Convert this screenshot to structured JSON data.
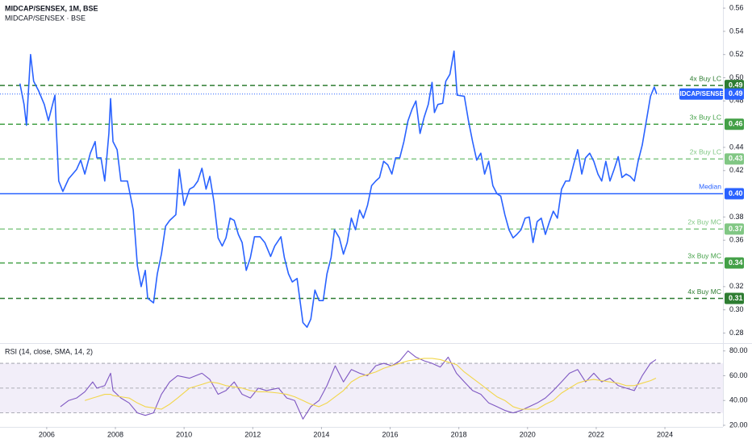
{
  "chart_data": [
    {
      "type": "line",
      "title": "MIDCAP/SENSEX, 1M, BSE",
      "subtitle": "MIDCAP/SENSEX · BSE",
      "xlim": [
        2004.64,
        2025.69
      ],
      "ylim": [
        0.272,
        0.567
      ],
      "yticks": [
        0.56,
        0.54,
        0.52,
        {
          "value": 0.5,
          "label": "0.50"
        },
        0.48,
        0.44,
        0.42,
        0.38,
        0.36,
        0.32,
        {
          "value": 0.3,
          "label": "0.30"
        },
        0.28
      ],
      "x": [
        2005.22,
        2005.34,
        2005.41,
        2005.53,
        2005.62,
        2005.76,
        2005.93,
        2006.05,
        2006.24,
        2006.28,
        2006.35,
        2006.47,
        2006.64,
        2006.87,
        2006.99,
        2007.11,
        2007.27,
        2007.41,
        2007.46,
        2007.58,
        2007.69,
        2007.81,
        2007.86,
        2007.93,
        2008.05,
        2008.16,
        2008.35,
        2008.52,
        2008.64,
        2008.75,
        2008.87,
        2008.94,
        2009.11,
        2009.22,
        2009.34,
        2009.46,
        2009.58,
        2009.76,
        2009.86,
        2010.0,
        2010.16,
        2010.28,
        2010.4,
        2010.52,
        2010.64,
        2010.75,
        2010.87,
        2010.99,
        2011.11,
        2011.22,
        2011.34,
        2011.46,
        2011.58,
        2011.69,
        2011.81,
        2011.93,
        2012.05,
        2012.21,
        2012.35,
        2012.52,
        2012.64,
        2012.82,
        2012.92,
        2013.04,
        2013.15,
        2013.29,
        2013.46,
        2013.58,
        2013.69,
        2013.81,
        2013.93,
        2014.05,
        2014.16,
        2014.28,
        2014.38,
        2014.52,
        2014.64,
        2014.75,
        2014.87,
        2014.99,
        2015.11,
        2015.22,
        2015.34,
        2015.46,
        2015.58,
        2015.69,
        2015.81,
        2015.93,
        2016.05,
        2016.16,
        2016.28,
        2016.4,
        2016.52,
        2016.64,
        2016.75,
        2016.87,
        2016.99,
        2017.11,
        2017.22,
        2017.29,
        2017.39,
        2017.53,
        2017.62,
        2017.74,
        2017.86,
        2017.95,
        2018.16,
        2018.28,
        2018.4,
        2018.52,
        2018.64,
        2018.75,
        2018.87,
        2018.99,
        2019.11,
        2019.22,
        2019.34,
        2019.46,
        2019.58,
        2019.69,
        2019.81,
        2019.93,
        2020.05,
        2020.16,
        2020.28,
        2020.4,
        2020.52,
        2020.64,
        2020.75,
        2020.87,
        2020.99,
        2021.11,
        2021.22,
        2021.34,
        2021.46,
        2021.58,
        2021.69,
        2021.81,
        2021.93,
        2022.05,
        2022.16,
        2022.28,
        2022.4,
        2022.52,
        2022.64,
        2022.75,
        2022.87,
        2022.99,
        2023.11,
        2023.22,
        2023.34,
        2023.46,
        2023.58,
        2023.69,
        2023.76
      ],
      "series": [
        {
          "name": "MIDCAP/SENSEX",
          "color": "#2962ff",
          "last_value_label": "0.49",
          "values": [
            0.495,
            0.477,
            0.459,
            0.52,
            0.497,
            0.489,
            0.477,
            0.463,
            0.485,
            0.456,
            0.411,
            0.402,
            0.413,
            0.421,
            0.429,
            0.417,
            0.435,
            0.445,
            0.431,
            0.431,
            0.411,
            0.452,
            0.482,
            0.445,
            0.438,
            0.411,
            0.411,
            0.386,
            0.338,
            0.32,
            0.334,
            0.31,
            0.306,
            0.331,
            0.348,
            0.372,
            0.377,
            0.382,
            0.421,
            0.39,
            0.404,
            0.406,
            0.411,
            0.422,
            0.404,
            0.415,
            0.393,
            0.362,
            0.355,
            0.362,
            0.379,
            0.377,
            0.365,
            0.358,
            0.334,
            0.345,
            0.363,
            0.363,
            0.358,
            0.346,
            0.355,
            0.363,
            0.345,
            0.331,
            0.324,
            0.327,
            0.289,
            0.285,
            0.292,
            0.317,
            0.308,
            0.308,
            0.331,
            0.345,
            0.369,
            0.362,
            0.348,
            0.358,
            0.379,
            0.369,
            0.386,
            0.379,
            0.39,
            0.407,
            0.411,
            0.414,
            0.428,
            0.425,
            0.417,
            0.431,
            0.431,
            0.445,
            0.463,
            0.473,
            0.48,
            0.452,
            0.466,
            0.477,
            0.496,
            0.47,
            0.477,
            0.478,
            0.497,
            0.503,
            0.523,
            0.485,
            0.484,
            0.463,
            0.445,
            0.429,
            0.435,
            0.417,
            0.428,
            0.407,
            0.4,
            0.398,
            0.382,
            0.369,
            0.362,
            0.365,
            0.369,
            0.379,
            0.38,
            0.358,
            0.376,
            0.379,
            0.365,
            0.376,
            0.385,
            0.379,
            0.404,
            0.411,
            0.411,
            0.425,
            0.438,
            0.417,
            0.431,
            0.435,
            0.428,
            0.417,
            0.411,
            0.428,
            0.411,
            0.421,
            0.432,
            0.414,
            0.417,
            0.415,
            0.411,
            0.428,
            0.442,
            0.463,
            0.484,
            0.492,
            0.486
          ]
        }
      ],
      "levels": [
        {
          "name": "4x Buy LC",
          "value": 0.4933,
          "value_label": "0.49",
          "color": "#2e7d32",
          "dashed": true
        },
        {
          "name": "3x Buy LC",
          "value": 0.4599,
          "value_label": "0.46",
          "color": "#43a047",
          "dashed": true
        },
        {
          "name": "2x Buy LC",
          "value": 0.43,
          "value_label": "0.43",
          "color": "#81c784",
          "dashed": true
        },
        {
          "name": "Median",
          "value": 0.4001,
          "value_label": "0.40",
          "color": "#2962ff",
          "dashed": false
        },
        {
          "name": "2x Buy MC",
          "value": 0.3696,
          "value_label": "0.37",
          "color": "#81c784",
          "dashed": true
        },
        {
          "name": "3x Buy MC",
          "value": 0.3404,
          "value_label": "0.34",
          "color": "#43a047",
          "dashed": true
        },
        {
          "name": "4x Buy MC",
          "value": 0.3098,
          "value_label": "0.31",
          "color": "#2e7d32",
          "dashed": true
        }
      ]
    },
    {
      "type": "line",
      "title": "RSI (14, close, SMA, 14, 2)",
      "xlim": [
        2004.64,
        2025.69
      ],
      "ylim": [
        20,
        85
      ],
      "xticks": [
        2006,
        2008,
        2010,
        2012,
        2014,
        2016,
        2018,
        2020,
        2022,
        2024
      ],
      "yticks": [
        {
          "value": 80,
          "label": "80.00"
        },
        {
          "value": 60,
          "label": "60.00"
        },
        {
          "value": 40,
          "label": "40.00"
        },
        {
          "value": 20,
          "label": "20.00"
        }
      ],
      "levels": [
        70,
        50,
        30
      ],
      "band_color": "#7e57c2",
      "x": [
        2006.4,
        2006.64,
        2006.87,
        2007.11,
        2007.34,
        2007.46,
        2007.69,
        2007.86,
        2007.93,
        2008.16,
        2008.4,
        2008.64,
        2008.87,
        2009.11,
        2009.34,
        2009.58,
        2009.81,
        2010.16,
        2010.52,
        2010.75,
        2010.99,
        2011.22,
        2011.46,
        2011.69,
        2011.93,
        2012.16,
        2012.4,
        2012.75,
        2012.99,
        2013.22,
        2013.46,
        2013.69,
        2013.93,
        2014.16,
        2014.4,
        2014.64,
        2014.87,
        2015.11,
        2015.34,
        2015.58,
        2015.81,
        2016.05,
        2016.28,
        2016.52,
        2016.75,
        2016.99,
        2017.22,
        2017.46,
        2017.69,
        2017.93,
        2018.16,
        2018.4,
        2018.64,
        2018.87,
        2019.11,
        2019.34,
        2019.58,
        2019.81,
        2020.05,
        2020.28,
        2020.52,
        2020.75,
        2020.99,
        2021.22,
        2021.46,
        2021.69,
        2021.93,
        2022.16,
        2022.4,
        2022.64,
        2022.87,
        2023.11,
        2023.34,
        2023.58,
        2023.74
      ],
      "series": [
        {
          "color": "#7e57c2",
          "values": [
            35,
            40,
            42,
            47,
            55,
            50,
            52,
            62,
            48,
            42,
            38,
            30,
            28,
            30,
            45,
            55,
            60,
            58,
            62,
            57,
            45,
            48,
            55,
            45,
            42,
            50,
            48,
            50,
            42,
            40,
            25,
            35,
            40,
            52,
            68,
            55,
            65,
            62,
            60,
            68,
            70,
            68,
            72,
            80,
            75,
            72,
            70,
            67,
            75,
            62,
            55,
            48,
            45,
            38,
            35,
            32,
            30,
            32,
            35,
            38,
            42,
            48,
            55,
            62,
            65,
            55,
            62,
            55,
            58,
            52,
            50,
            48,
            60,
            70,
            73
          ]
        },
        {
          "color": "#f2d64b",
          "values": [
            null,
            null,
            null,
            40,
            42,
            43,
            45,
            45,
            44,
            43,
            42,
            38,
            35,
            34,
            33,
            37,
            42,
            50,
            53,
            55,
            54,
            52,
            51,
            50,
            48,
            47,
            47,
            46,
            45,
            43,
            40,
            37,
            35,
            38,
            43,
            48,
            55,
            59,
            61,
            63,
            66,
            68,
            70,
            72,
            73,
            74,
            74,
            73,
            71,
            69,
            63,
            58,
            53,
            48,
            43,
            40,
            35,
            33,
            33,
            33,
            37,
            40,
            46,
            50,
            54,
            56,
            57,
            56,
            55,
            54,
            52,
            52,
            54,
            56,
            58
          ]
        }
      ]
    }
  ]
}
